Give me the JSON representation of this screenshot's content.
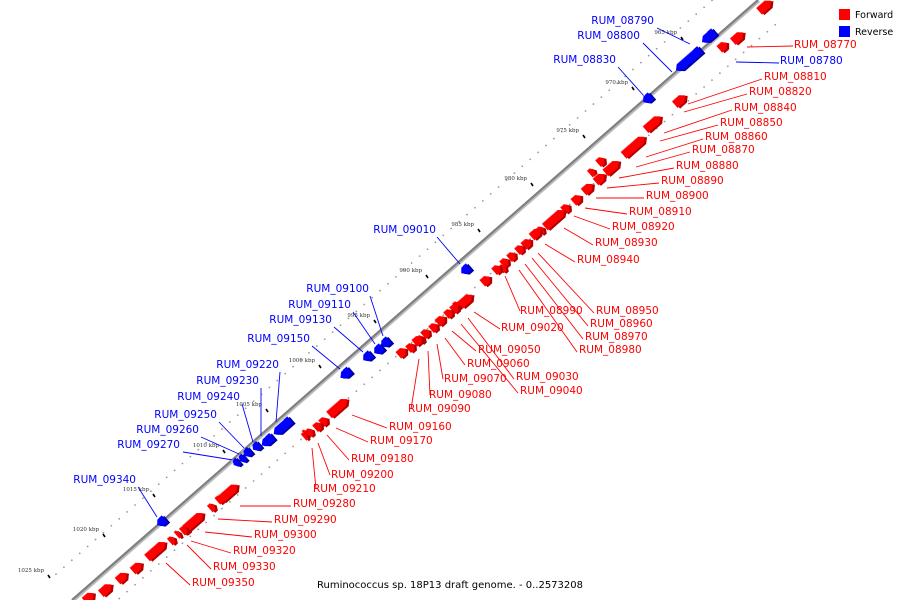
{
  "caption": "Ruminococcus sp. 18P13 draft genome. - 0..2573208",
  "legend": [
    {
      "label": "Forward",
      "color": "#ff0000"
    },
    {
      "label": "Reverse",
      "color": "#0000ff"
    }
  ],
  "colors": {
    "forward": "#ff0000",
    "reverse": "#0000ff",
    "axis": "#7f7f7f"
  },
  "ticks": [
    {
      "label": "965 kbp",
      "pos": 965
    },
    {
      "label": "970 kbp",
      "pos": 970
    },
    {
      "label": "975 kbp",
      "pos": 975
    },
    {
      "label": "980 kbp",
      "pos": 980
    },
    {
      "label": "985 kbp",
      "pos": 985
    },
    {
      "label": "990 kbp",
      "pos": 990
    },
    {
      "label": "995 kbp",
      "pos": 995
    },
    {
      "label": "1000 kbp",
      "pos": 1000
    },
    {
      "label": "1005 kbp",
      "pos": 1005
    },
    {
      "label": "1010 kbp",
      "pos": 1010
    },
    {
      "label": "1015 kbp",
      "pos": 1015
    },
    {
      "label": "1020 kbp",
      "pos": 1020
    },
    {
      "label": "1025 kbp",
      "pos": 1025
    }
  ],
  "genes": [
    {
      "name": "RUM_08790",
      "strand": "reverse"
    },
    {
      "name": "RUM_08800",
      "strand": "reverse"
    },
    {
      "name": "RUM_08830",
      "strand": "reverse"
    },
    {
      "name": "RUM_09010",
      "strand": "reverse"
    },
    {
      "name": "RUM_09100",
      "strand": "reverse"
    },
    {
      "name": "RUM_09110",
      "strand": "reverse"
    },
    {
      "name": "RUM_09130",
      "strand": "reverse"
    },
    {
      "name": "RUM_09150",
      "strand": "reverse"
    },
    {
      "name": "RUM_09220",
      "strand": "reverse"
    },
    {
      "name": "RUM_09230",
      "strand": "reverse"
    },
    {
      "name": "RUM_09240",
      "strand": "reverse"
    },
    {
      "name": "RUM_09250",
      "strand": "reverse"
    },
    {
      "name": "RUM_09260",
      "strand": "reverse"
    },
    {
      "name": "RUM_09270",
      "strand": "reverse"
    },
    {
      "name": "RUM_09340",
      "strand": "reverse"
    },
    {
      "name": "RUM_08780",
      "strand": "reverse"
    },
    {
      "name": "RUM_08770",
      "strand": "forward"
    },
    {
      "name": "RUM_08810",
      "strand": "forward"
    },
    {
      "name": "RUM_08820",
      "strand": "forward"
    },
    {
      "name": "RUM_08840",
      "strand": "forward"
    },
    {
      "name": "RUM_08850",
      "strand": "forward"
    },
    {
      "name": "RUM_08860",
      "strand": "forward"
    },
    {
      "name": "RUM_08870",
      "strand": "forward"
    },
    {
      "name": "RUM_08880",
      "strand": "forward"
    },
    {
      "name": "RUM_08890",
      "strand": "forward"
    },
    {
      "name": "RUM_08900",
      "strand": "forward"
    },
    {
      "name": "RUM_08910",
      "strand": "forward"
    },
    {
      "name": "RUM_08920",
      "strand": "forward"
    },
    {
      "name": "RUM_08930",
      "strand": "forward"
    },
    {
      "name": "RUM_08940",
      "strand": "forward"
    },
    {
      "name": "RUM_08950",
      "strand": "forward"
    },
    {
      "name": "RUM_08960",
      "strand": "forward"
    },
    {
      "name": "RUM_08970",
      "strand": "forward"
    },
    {
      "name": "RUM_08980",
      "strand": "forward"
    },
    {
      "name": "RUM_08990",
      "strand": "forward"
    },
    {
      "name": "RUM_09020",
      "strand": "forward"
    },
    {
      "name": "RUM_09030",
      "strand": "forward"
    },
    {
      "name": "RUM_09040",
      "strand": "forward"
    },
    {
      "name": "RUM_09050",
      "strand": "forward"
    },
    {
      "name": "RUM_09060",
      "strand": "forward"
    },
    {
      "name": "RUM_09070",
      "strand": "forward"
    },
    {
      "name": "RUM_09080",
      "strand": "forward"
    },
    {
      "name": "RUM_09090",
      "strand": "forward"
    },
    {
      "name": "RUM_09160",
      "strand": "forward"
    },
    {
      "name": "RUM_09170",
      "strand": "forward"
    },
    {
      "name": "RUM_09180",
      "strand": "forward"
    },
    {
      "name": "RUM_09200",
      "strand": "forward"
    },
    {
      "name": "RUM_09210",
      "strand": "forward"
    },
    {
      "name": "RUM_09280",
      "strand": "forward"
    },
    {
      "name": "RUM_09290",
      "strand": "forward"
    },
    {
      "name": "RUM_09300",
      "strand": "forward"
    },
    {
      "name": "RUM_09320",
      "strand": "forward"
    },
    {
      "name": "RUM_09330",
      "strand": "forward"
    },
    {
      "name": "RUM_09350",
      "strand": "forward"
    }
  ]
}
